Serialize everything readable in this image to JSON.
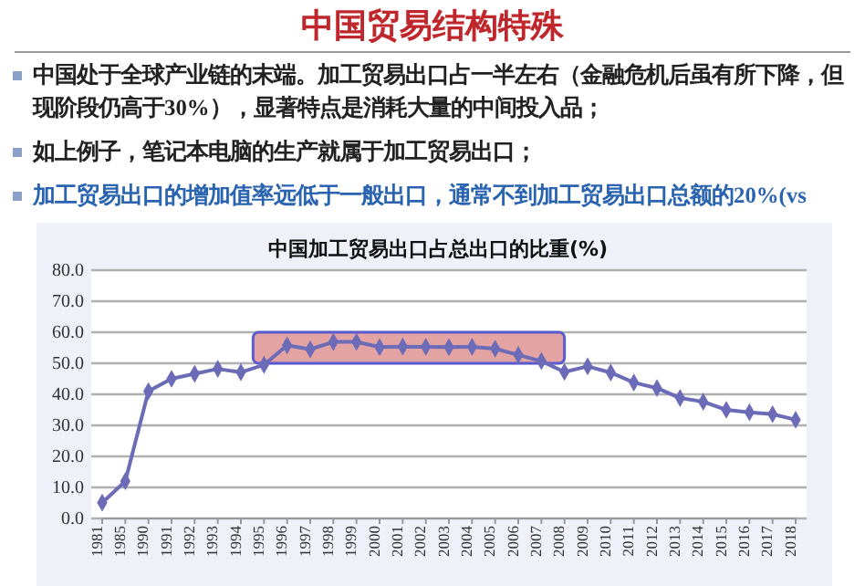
{
  "chart_data": {
    "type": "line",
    "title": "中国贸易结构特殊",
    "subtitle": "中国加工贸易出口占总出口的比重(%)",
    "annotations": [
      "中国处于全球产业链的末端。加工贸易出口占一半左右（金融危机后虽有所下降，但现阶段仍高于30%），显著特点是消耗大量的中间投入品；",
      "如上例子，笔记本电脑的生产就属于加工贸易出口；",
      "加工贸易出口的增加值率远低于一般出口，通常不到加工贸易出口总额的20%(vs"
    ],
    "categories": [
      "1981",
      "1985",
      "1990",
      "1991",
      "1992",
      "1993",
      "1994",
      "1995",
      "1996",
      "1997",
      "1998",
      "1999",
      "2000",
      "2001",
      "2002",
      "2003",
      "2004",
      "2005",
      "2006",
      "2007",
      "2008",
      "2009",
      "2010",
      "2011",
      "2012",
      "2013",
      "2014",
      "2015",
      "2016",
      "2017",
      "2018"
    ],
    "series": [
      {
        "color": "#6b6bb8",
        "values": [
          5.1,
          12,
          41,
          45,
          46.6,
          48.2,
          47.1,
          49.5,
          55.8,
          54.5,
          56.9,
          56.9,
          55.2,
          55.4,
          55.3,
          55.2,
          55.3,
          54.7,
          52.7,
          50.7,
          47.2,
          49,
          47,
          43.8,
          42,
          38.8,
          37.6,
          35,
          34.2,
          33.6,
          31.8
        ]
      }
    ],
    "ylim": [
      0,
      80
    ],
    "yticks": [
      {
        "value": 0,
        "label": "0.0"
      },
      {
        "value": 10,
        "label": "10.0"
      },
      {
        "value": 20,
        "label": "20.0"
      },
      {
        "value": 30,
        "label": "30.0"
      },
      {
        "value": 40,
        "label": "40.0"
      },
      {
        "value": 50,
        "label": "50.0"
      },
      {
        "value": 60,
        "label": "60.0"
      },
      {
        "value": 70,
        "label": "70.0"
      },
      {
        "value": 80,
        "label": "80.0"
      }
    ],
    "bands": [
      {
        "axis": "x",
        "from": "1995",
        "to": "2008",
        "color": "#e4a3a3"
      }
    ],
    "grid": "y",
    "marker": "diamond",
    "line_style": "solid"
  }
}
